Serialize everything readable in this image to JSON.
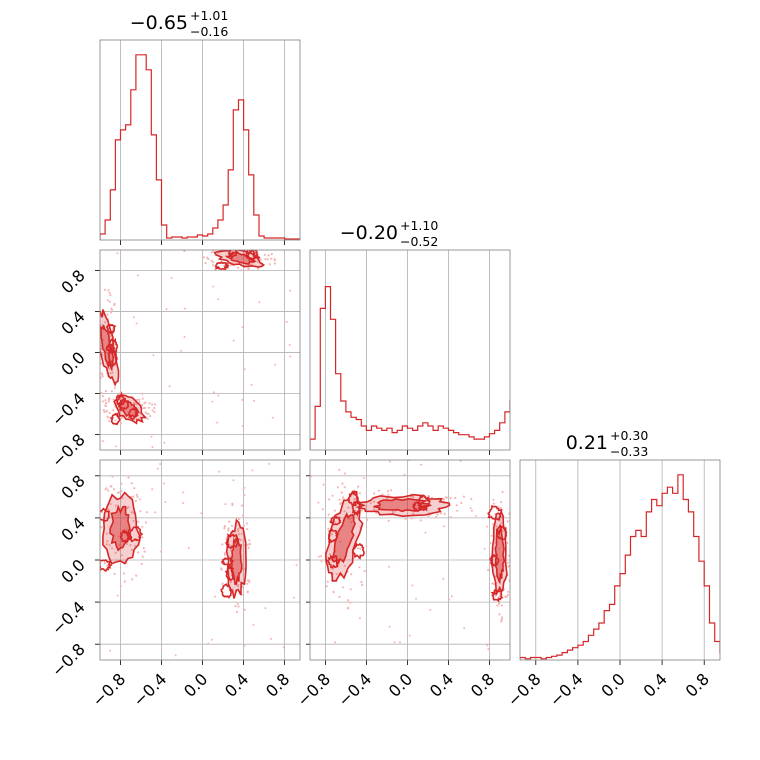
{
  "chart_data": {
    "type": "corner",
    "panels": [
      {
        "kind": "hist",
        "title": {
          "median": "−0.65",
          "plus": "+1.01",
          "minus": "−0.16"
        },
        "xlim": [
          -1.0,
          0.95
        ],
        "x_ticks": [
          -0.8,
          -0.4,
          0.0,
          0.4,
          0.8
        ],
        "bins_start": -1.0,
        "bin_width": 0.05,
        "counts": [
          6,
          20,
          50,
          100,
          110,
          115,
          150,
          185,
          185,
          170,
          105,
          60,
          15,
          2,
          3,
          3,
          2,
          3,
          3,
          5,
          4,
          6,
          12,
          20,
          35,
          70,
          130,
          140,
          110,
          65,
          25,
          4,
          2,
          2,
          2,
          2,
          1,
          1,
          1
        ]
      },
      {
        "kind": "hist",
        "title": {
          "median": "−0.20",
          "plus": "+1.10",
          "minus": "−0.52"
        },
        "xlim": [
          -0.95,
          1.0
        ],
        "x_ticks": [
          -0.8,
          -0.4,
          0.0,
          0.4,
          0.8
        ],
        "bins_start": -0.95,
        "bin_width": 0.05,
        "counts": [
          10,
          40,
          130,
          150,
          120,
          70,
          45,
          35,
          30,
          28,
          22,
          18,
          22,
          20,
          18,
          20,
          16,
          18,
          22,
          20,
          18,
          22,
          25,
          22,
          18,
          22,
          20,
          18,
          16,
          14,
          14,
          12,
          10,
          10,
          12,
          15,
          18,
          25,
          35,
          45,
          60,
          80,
          110,
          170,
          165,
          95,
          45,
          45,
          50
        ]
      },
      {
        "kind": "hist",
        "title": {
          "median": "0.21",
          "plus": "+0.30",
          "minus": "−0.33"
        },
        "xlim": [
          -0.95,
          0.95
        ],
        "x_ticks": [
          -0.8,
          -0.4,
          0.0,
          0.4,
          0.8
        ],
        "bins_start": -0.95,
        "bin_width": 0.05,
        "counts": [
          2,
          1,
          2,
          2,
          1,
          2,
          3,
          4,
          6,
          8,
          10,
          12,
          15,
          20,
          25,
          30,
          40,
          45,
          60,
          70,
          85,
          100,
          105,
          100,
          120,
          130,
          125,
          135,
          140,
          135,
          150,
          130,
          120,
          100,
          80,
          60,
          30,
          15,
          6,
          3
        ]
      },
      {
        "kind": "2d",
        "x_param": 0,
        "y_param": 1,
        "xlim": [
          -1.0,
          0.95
        ],
        "ylim": [
          -0.95,
          1.0
        ],
        "y_ticks": [
          -0.8,
          -0.4,
          0.0,
          0.4,
          0.8
        ],
        "modes": [
          {
            "cx": -0.93,
            "cy": 0.05,
            "rx": 0.07,
            "ry": 0.35,
            "rot": 12
          },
          {
            "cx": -0.72,
            "cy": -0.55,
            "rx": 0.16,
            "ry": 0.1,
            "rot": -35
          },
          {
            "cx": 0.37,
            "cy": 0.92,
            "rx": 0.22,
            "ry": 0.07,
            "rot": -12
          }
        ]
      },
      {
        "kind": "2d",
        "x_param": 0,
        "y_param": 2,
        "xlim": [
          -1.0,
          0.95
        ],
        "ylim": [
          -0.95,
          0.95
        ],
        "y_ticks": [
          -0.8,
          -0.4,
          0.0,
          0.4,
          0.8
        ],
        "modes": [
          {
            "cx": -0.8,
            "cy": 0.3,
            "rx": 0.17,
            "ry": 0.32,
            "rot": 0
          },
          {
            "cx": 0.33,
            "cy": 0.0,
            "rx": 0.09,
            "ry": 0.33,
            "rot": 0
          }
        ]
      },
      {
        "kind": "2d",
        "x_param": 1,
        "y_param": 2,
        "xlim": [
          -0.95,
          1.0
        ],
        "ylim": [
          -0.95,
          0.95
        ],
        "modes": [
          {
            "cx": -0.62,
            "cy": 0.2,
            "rx": 0.14,
            "ry": 0.4,
            "rot": -15
          },
          {
            "cx": -0.05,
            "cy": 0.52,
            "rx": 0.45,
            "ry": 0.09,
            "rot": 0
          },
          {
            "cx": 0.9,
            "cy": 0.05,
            "rx": 0.07,
            "ry": 0.38,
            "rot": 0
          }
        ]
      }
    ]
  }
}
